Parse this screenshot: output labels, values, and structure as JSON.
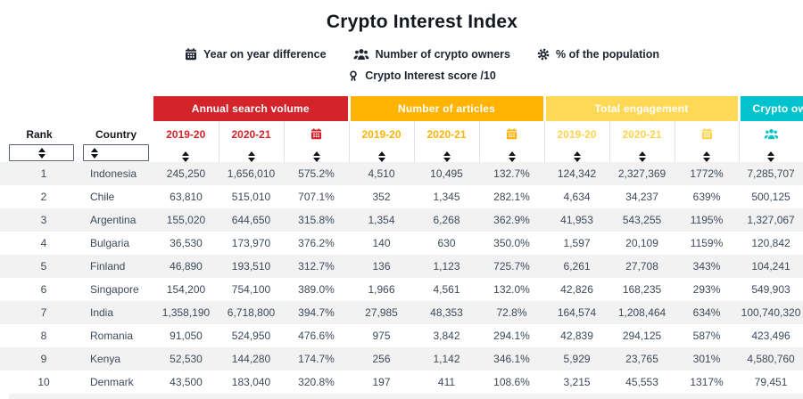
{
  "title": "Crypto Interest Index",
  "legend": {
    "row1": [
      {
        "icon": "calendar-icon",
        "label": "Year on year difference"
      },
      {
        "icon": "people-icon",
        "label": "Number of crypto owners"
      },
      {
        "icon": "gear-icon",
        "label": "% of the population"
      }
    ],
    "row2": [
      {
        "icon": "person-icon",
        "label": "Crypto Interest score /10"
      }
    ]
  },
  "colors": {
    "search_volume_red": "#d3232b",
    "articles_amber": "#ffb302",
    "engagement_yellow": "#ffd955",
    "owners_teal": "#00c3cd",
    "row_stripe_gray": "#f2f2f2",
    "cell_text": "#3c4a5b"
  },
  "table": {
    "rank_header": "Rank",
    "country_header": "Country",
    "groups": [
      {
        "label": "Annual search volume",
        "columns": [
          "2019-20",
          "2020-21",
          "calendar-icon"
        ]
      },
      {
        "label": "Number of articles",
        "columns": [
          "2019-20",
          "2020-21",
          "calendar-icon"
        ]
      },
      {
        "label": "Total engagement",
        "columns": [
          "2019-20",
          "2020-21",
          "calendar-icon"
        ]
      },
      {
        "label": "Crypto owners",
        "columns": [
          "people-icon"
        ]
      }
    ],
    "rows": [
      {
        "rank": "1",
        "country": "Indonesia",
        "values": [
          "245,250",
          "1,656,010",
          "575.2%",
          "4,510",
          "10,495",
          "132.7%",
          "124,342",
          "2,327,369",
          "1772%",
          "7,285,707"
        ]
      },
      {
        "rank": "2",
        "country": "Chile",
        "values": [
          "63,810",
          "515,010",
          "707.1%",
          "352",
          "1,345",
          "282.1%",
          "4,634",
          "34,237",
          "639%",
          "500,125"
        ]
      },
      {
        "rank": "3",
        "country": "Argentina",
        "values": [
          "155,020",
          "644,650",
          "315.8%",
          "1,354",
          "6,268",
          "362.9%",
          "41,953",
          "543,255",
          "1195%",
          "1,327,067"
        ]
      },
      {
        "rank": "4",
        "country": "Bulgaria",
        "values": [
          "36,530",
          "173,970",
          "376.2%",
          "140",
          "630",
          "350.0%",
          "1,597",
          "20,109",
          "1159%",
          "120,842"
        ]
      },
      {
        "rank": "5",
        "country": "Finland",
        "values": [
          "46,890",
          "193,510",
          "312.7%",
          "136",
          "1,123",
          "725.7%",
          "6,261",
          "27,708",
          "343%",
          "104,241"
        ]
      },
      {
        "rank": "6",
        "country": "Singapore",
        "values": [
          "154,200",
          "754,100",
          "389.0%",
          "1,966",
          "4,561",
          "132.0%",
          "42,826",
          "168,235",
          "293%",
          "549,903"
        ]
      },
      {
        "rank": "7",
        "country": "India",
        "values": [
          "1,358,190",
          "6,718,800",
          "394.7%",
          "27,985",
          "48,353",
          "72.8%",
          "164,574",
          "1,208,464",
          "634%",
          "100,740,320"
        ]
      },
      {
        "rank": "8",
        "country": "Romania",
        "values": [
          "91,050",
          "524,950",
          "476.6%",
          "975",
          "3,842",
          "294.1%",
          "42,839",
          "294,125",
          "587%",
          "423,496"
        ]
      },
      {
        "rank": "9",
        "country": "Kenya",
        "values": [
          "52,530",
          "144,280",
          "174.7%",
          "256",
          "1,142",
          "346.1%",
          "5,929",
          "23,765",
          "301%",
          "4,580,760"
        ]
      },
      {
        "rank": "10",
        "country": "Denmark",
        "values": [
          "43,500",
          "183,040",
          "320.8%",
          "197",
          "411",
          "108.6%",
          "3,215",
          "45,553",
          "1317%",
          "79,451"
        ]
      }
    ]
  }
}
